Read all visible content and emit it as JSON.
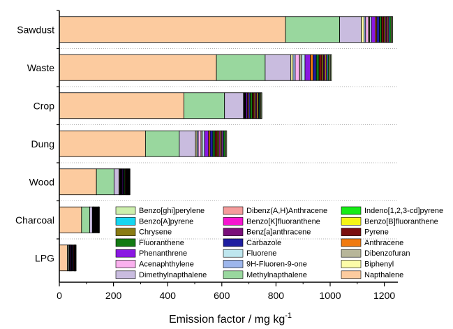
{
  "chart_data": {
    "type": "bar",
    "orientation": "horizontal",
    "stacked": true,
    "xlabel": "Emission factor / mg kg",
    "xlabel_superscript": "-1",
    "xlim": [
      0,
      1250
    ],
    "xticks": [
      0,
      200,
      400,
      600,
      800,
      1000,
      1200
    ],
    "grid": "dotted separators between categories",
    "legend_position": "lower-right inside plot",
    "categories": [
      "Sawdust",
      "Waste",
      "Crop",
      "Dung",
      "Wood",
      "Charcoal",
      "LPG"
    ],
    "series": [
      {
        "name": "Napthalene",
        "color": "#FCCB9F",
        "values": [
          835,
          580,
          460,
          318,
          137,
          82,
          30
        ]
      },
      {
        "name": "Methylnapthalene",
        "color": "#99D79E",
        "values": [
          200,
          180,
          150,
          125,
          65,
          30,
          4
        ]
      },
      {
        "name": "Dimethylnapthalene",
        "color": "#C9BCDF",
        "values": [
          80,
          95,
          70,
          60,
          18,
          10,
          3
        ]
      },
      {
        "name": "Biphenyl",
        "color": "#FCFCA8",
        "values": [
          10,
          8,
          2,
          5,
          3,
          2,
          1
        ]
      },
      {
        "name": "9H-Fluoren-9-one",
        "color": "#9DB6EC",
        "values": [
          6,
          8,
          2,
          5,
          2,
          1,
          1
        ]
      },
      {
        "name": "Acenaphthylene",
        "color": "#FAB0EE",
        "values": [
          10,
          16,
          2,
          10,
          2,
          1,
          1
        ]
      },
      {
        "name": "Dibenzofuran",
        "color": "#B7B69A",
        "values": [
          5,
          8,
          2,
          5,
          2,
          1,
          1
        ]
      },
      {
        "name": "Fluorene",
        "color": "#BEE6EE",
        "values": [
          6,
          12,
          2,
          8,
          2,
          1,
          1
        ]
      },
      {
        "name": "Phenanthrene",
        "color": "#8A18E2",
        "values": [
          15,
          20,
          5,
          15,
          3,
          2,
          3
        ]
      },
      {
        "name": "Anthracene",
        "color": "#F07A10",
        "values": [
          5,
          10,
          4,
          6,
          2,
          2,
          1
        ]
      },
      {
        "name": "Carbazole",
        "color": "#1E1EA0",
        "values": [
          10,
          12,
          6,
          10,
          3,
          2,
          3
        ]
      },
      {
        "name": "Fluoranthene",
        "color": "#137A13",
        "values": [
          8,
          10,
          8,
          8,
          3,
          2,
          2
        ]
      },
      {
        "name": "Pyrene",
        "color": "#7A0E0E",
        "values": [
          8,
          10,
          6,
          8,
          3,
          2,
          3
        ]
      },
      {
        "name": "Chrysene",
        "color": "#8A7B13",
        "values": [
          5,
          6,
          5,
          6,
          2,
          2,
          1
        ]
      },
      {
        "name": "Benz[a]anthracene",
        "color": "#7A107A",
        "values": [
          5,
          6,
          5,
          6,
          2,
          2,
          1
        ]
      },
      {
        "name": "Benzo[B]fluoranthene",
        "color": "#F5F516",
        "values": [
          4,
          4,
          4,
          4,
          2,
          1,
          1
        ]
      },
      {
        "name": "Benzo[K]fluoranthene",
        "color": "#F516D0",
        "values": [
          4,
          4,
          3,
          4,
          2,
          1,
          1
        ]
      },
      {
        "name": "Benzo[A]pyrene",
        "color": "#16D6F0",
        "values": [
          4,
          4,
          3,
          4,
          2,
          1,
          1
        ]
      },
      {
        "name": "Indeno[1,2,3-cd]pyrene",
        "color": "#16EC16",
        "values": [
          4,
          4,
          3,
          4,
          2,
          1,
          1
        ]
      },
      {
        "name": "Dibenz(A,H)Anthracene",
        "color": "#F59C9C",
        "values": [
          3,
          4,
          3,
          3,
          2,
          1,
          1
        ]
      },
      {
        "name": "Benzo[ghi]perylene",
        "color": "#CDEFAD",
        "values": [
          4,
          4,
          3,
          4,
          2,
          1,
          1
        ]
      }
    ],
    "legend_order": [
      "Benzo[ghi]perylene",
      "Dibenz(A,H)Anthracene",
      "Indeno[1,2,3-cd]pyrene",
      "Benzo[A]pyrene",
      "Benzo[K]fluoranthene",
      "Benzo[B]fluoranthene",
      "Chrysene",
      "Benz[a]anthracene",
      "Pyrene",
      "Fluoranthene",
      "Carbazole",
      "Anthracene",
      "Phenanthrene",
      "Fluorene",
      "Dibenzofuran",
      "Acenaphthylene",
      "9H-Fluoren-9-one",
      "Biphenyl",
      "Dimethylnapthalene",
      "Methylnapthalene",
      "Napthalene"
    ]
  }
}
